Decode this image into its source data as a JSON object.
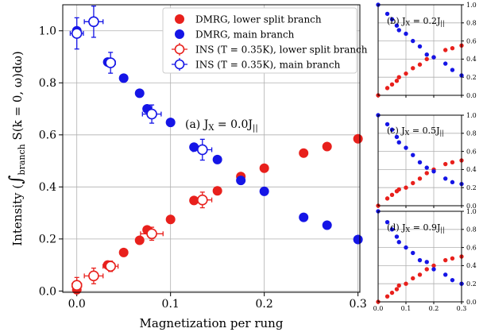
{
  "chart_data": [
    {
      "type": "scatter",
      "panel_label": "(a) J_X = 0.0J_∥",
      "xlabel": "Magnetization per rung",
      "ylabel": "Intensity (∫_branch S(k = 0, ω)dω)",
      "xlim": [
        -0.015,
        0.302
      ],
      "ylim": [
        -0.005,
        1.1
      ],
      "xticks": [
        0.0,
        0.1,
        0.2,
        0.3
      ],
      "xtick_labels": [
        "0.0",
        "0.1",
        "0.2",
        "0.3"
      ],
      "yticks": [
        0.0,
        0.2,
        0.4,
        0.6,
        0.8,
        1.0
      ],
      "ytick_labels": [
        "0.0",
        "0.2",
        "0.4",
        "0.6",
        "0.8",
        "1.0"
      ],
      "grid": true,
      "legend_placement": "top-right",
      "series": [
        {
          "name": "DMRG, lower split branch",
          "color": "#e8201c",
          "marker": "filled-circle",
          "x": [
            0.0,
            0.033,
            0.05,
            0.067,
            0.075,
            0.1,
            0.125,
            0.15,
            0.175,
            0.2,
            0.242,
            0.267,
            0.3
          ],
          "y": [
            0.005,
            0.1,
            0.148,
            0.195,
            0.235,
            0.275,
            0.348,
            0.385,
            0.44,
            0.472,
            0.53,
            0.555,
            0.585
          ]
        },
        {
          "name": "DMRG, main branch",
          "color": "#1515e6",
          "marker": "filled-circle",
          "x": [
            0.0,
            0.033,
            0.05,
            0.067,
            0.075,
            0.1,
            0.125,
            0.15,
            0.175,
            0.2,
            0.242,
            0.267,
            0.3
          ],
          "y": [
            1.0,
            0.88,
            0.818,
            0.76,
            0.7,
            0.648,
            0.553,
            0.505,
            0.425,
            0.383,
            0.283,
            0.253,
            0.198
          ]
        },
        {
          "name": "INS (T = 0.35K), lower split branch",
          "color": "#e8201c",
          "marker": "open-circle",
          "x": [
            0.0,
            0.018,
            0.036,
            0.08,
            0.134
          ],
          "y": [
            0.022,
            0.058,
            0.095,
            0.22,
            0.35
          ],
          "xerr": [
            0.005,
            0.01,
            0.008,
            0.012,
            0.01
          ],
          "yerr": [
            0.03,
            0.03,
            0.02,
            0.025,
            0.03
          ]
        },
        {
          "name": "INS (T = 0.35K), main branch",
          "color": "#1515e6",
          "marker": "open-circle",
          "x": [
            0.0,
            0.018,
            0.036,
            0.08,
            0.134
          ],
          "y": [
            0.99,
            1.035,
            0.877,
            0.68,
            0.543
          ],
          "xerr": [
            0.007,
            0.01,
            0.005,
            0.01,
            0.01
          ],
          "yerr": [
            0.06,
            0.06,
            0.04,
            0.035,
            0.04
          ]
        }
      ]
    },
    {
      "type": "scatter",
      "panel_label": "(b) J_X = 0.2J_∥",
      "xlim": [
        0.0,
        0.3
      ],
      "ylim": [
        0.0,
        1.0
      ],
      "xticks": [],
      "xtick_labels": [],
      "yticks": [
        0.0,
        0.2,
        0.4,
        0.6,
        0.8,
        1.0
      ],
      "ytick_labels": [
        "0.0",
        "0.2",
        "0.4",
        "0.6",
        "0.8",
        "1.0"
      ],
      "grid": true,
      "series": [
        {
          "color": "#e8201c",
          "marker": "filled-circle",
          "x": [
            0.0,
            0.033,
            0.05,
            0.067,
            0.075,
            0.1,
            0.125,
            0.15,
            0.175,
            0.2,
            0.242,
            0.267,
            0.3
          ],
          "y": [
            0.0,
            0.08,
            0.12,
            0.16,
            0.2,
            0.24,
            0.3,
            0.34,
            0.4,
            0.42,
            0.5,
            0.52,
            0.55
          ]
        },
        {
          "color": "#1515e6",
          "marker": "filled-circle",
          "x": [
            0.0,
            0.033,
            0.05,
            0.067,
            0.075,
            0.1,
            0.125,
            0.15,
            0.175,
            0.2,
            0.242,
            0.267,
            0.3
          ],
          "y": [
            1.0,
            0.9,
            0.84,
            0.77,
            0.72,
            0.68,
            0.6,
            0.54,
            0.45,
            0.42,
            0.35,
            0.28,
            0.22
          ]
        }
      ]
    },
    {
      "type": "scatter",
      "panel_label": "(c) J_X = 0.5J_∥",
      "xlim": [
        0.0,
        0.3
      ],
      "ylim": [
        0.0,
        1.0
      ],
      "xticks": [],
      "xtick_labels": [],
      "yticks": [
        0.0,
        0.2,
        0.4,
        0.6,
        0.8,
        1.0
      ],
      "ytick_labels": [
        "0.0",
        "0.2",
        "0.4",
        "0.6",
        "0.8",
        "1.0"
      ],
      "grid": true,
      "series": [
        {
          "color": "#e8201c",
          "marker": "filled-circle",
          "x": [
            0.0,
            0.033,
            0.05,
            0.067,
            0.075,
            0.1,
            0.125,
            0.15,
            0.175,
            0.2,
            0.242,
            0.267,
            0.3
          ],
          "y": [
            0.0,
            0.08,
            0.12,
            0.16,
            0.18,
            0.2,
            0.25,
            0.3,
            0.36,
            0.4,
            0.46,
            0.48,
            0.5
          ]
        },
        {
          "color": "#1515e6",
          "marker": "filled-circle",
          "x": [
            0.0,
            0.033,
            0.05,
            0.067,
            0.075,
            0.1,
            0.125,
            0.15,
            0.175,
            0.2,
            0.242,
            0.267,
            0.3
          ],
          "y": [
            1.0,
            0.9,
            0.84,
            0.76,
            0.7,
            0.64,
            0.56,
            0.48,
            0.42,
            0.38,
            0.3,
            0.26,
            0.24
          ]
        }
      ]
    },
    {
      "type": "scatter",
      "panel_label": "(d) J_X = 0.9J_∥",
      "xlim": [
        0.0,
        0.3
      ],
      "ylim": [
        0.0,
        1.0
      ],
      "xticks": [
        0.0,
        0.1,
        0.2,
        0.3
      ],
      "xtick_labels": [
        "0.0",
        "0.1",
        "0.2",
        "0.3"
      ],
      "yticks": [
        0.0,
        0.2,
        0.4,
        0.6,
        0.8,
        1.0
      ],
      "ytick_labels": [
        "0.0",
        "0.2",
        "0.4",
        "0.6",
        "0.8",
        "1.0"
      ],
      "grid": true,
      "series": [
        {
          "color": "#e8201c",
          "marker": "filled-circle",
          "x": [
            0.0,
            0.033,
            0.05,
            0.067,
            0.075,
            0.1,
            0.125,
            0.15,
            0.175,
            0.2,
            0.242,
            0.267,
            0.3
          ],
          "y": [
            0.0,
            0.06,
            0.1,
            0.14,
            0.18,
            0.2,
            0.26,
            0.3,
            0.36,
            0.4,
            0.46,
            0.48,
            0.5
          ]
        },
        {
          "color": "#1515e6",
          "marker": "filled-circle",
          "x": [
            0.0,
            0.033,
            0.05,
            0.067,
            0.075,
            0.1,
            0.125,
            0.15,
            0.175,
            0.2,
            0.242,
            0.267,
            0.3
          ],
          "y": [
            1.0,
            0.88,
            0.8,
            0.72,
            0.66,
            0.6,
            0.54,
            0.46,
            0.44,
            0.36,
            0.3,
            0.24,
            0.2
          ]
        }
      ]
    }
  ]
}
